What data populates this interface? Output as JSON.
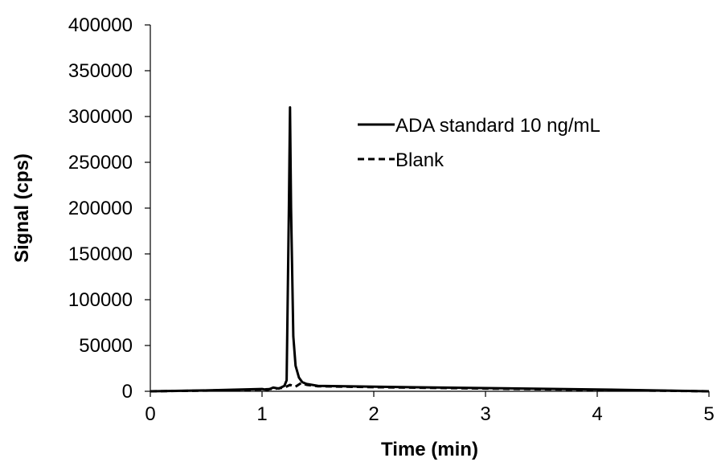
{
  "chart_data": {
    "type": "line",
    "title": "",
    "xlabel": "Time (min)",
    "ylabel": "Signal (cps)",
    "xlim": [
      0,
      5
    ],
    "ylim": [
      0,
      400000
    ],
    "xticks": [
      "0",
      "1",
      "2",
      "3",
      "4",
      "5"
    ],
    "yticks": [
      "0",
      "50000",
      "100000",
      "150000",
      "200000",
      "250000",
      "300000",
      "350000",
      "400000"
    ],
    "grid": false,
    "legend_position": "top-right",
    "series": [
      {
        "name": "ADA standard 10 ng/mL",
        "style": "solid",
        "color": "#000000",
        "x": [
          0,
          0.5,
          1.0,
          1.05,
          1.1,
          1.15,
          1.2,
          1.22,
          1.24,
          1.25,
          1.26,
          1.28,
          1.3,
          1.33,
          1.36,
          1.4,
          1.5,
          2.0,
          3.0,
          4.0,
          5.0
        ],
        "y": [
          0,
          1000,
          2500,
          1500,
          4000,
          3000,
          6000,
          12000,
          200000,
          310000,
          200000,
          60000,
          28000,
          15000,
          10000,
          8000,
          6000,
          5000,
          3500,
          2000,
          0
        ]
      },
      {
        "name": "Blank",
        "style": "dashed",
        "color": "#000000",
        "x": [
          0,
          0.5,
          1.0,
          1.1,
          1.2,
          1.25,
          1.3,
          1.35,
          1.4,
          1.5,
          2.0,
          3.0,
          4.0,
          5.0
        ],
        "y": [
          0,
          800,
          2000,
          2500,
          4000,
          7000,
          5000,
          9000,
          7000,
          5500,
          4500,
          3000,
          1500,
          0
        ]
      }
    ]
  }
}
